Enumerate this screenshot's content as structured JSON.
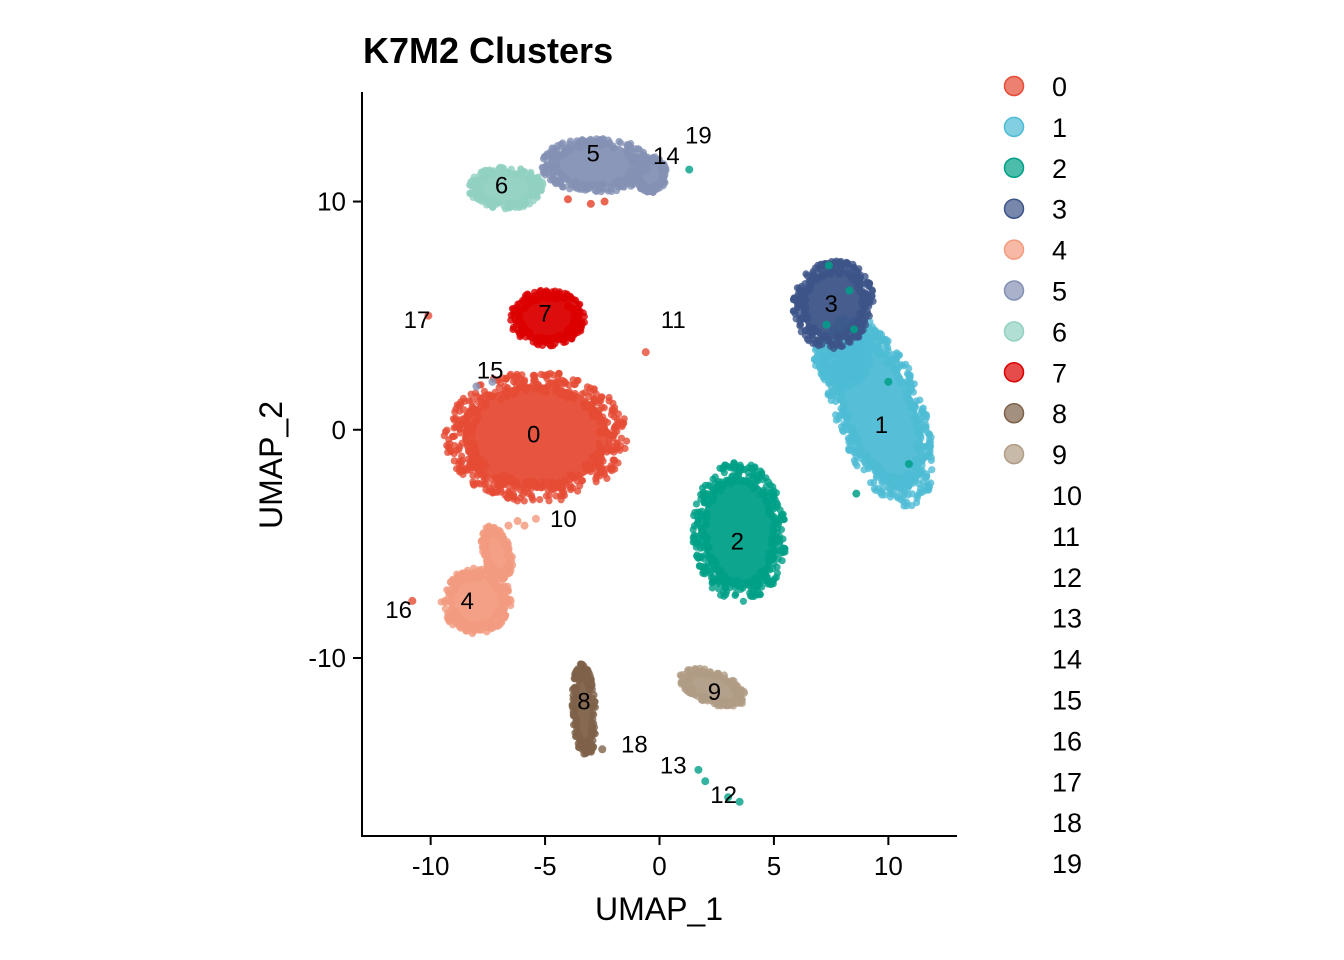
{
  "chart_data": {
    "type": "scatter",
    "title": "K7M2 Clusters",
    "xlabel": "UMAP_1",
    "ylabel": "UMAP_2",
    "xlim": [
      -13,
      13
    ],
    "ylim": [
      -17.8,
      14.8
    ],
    "x_ticks": [
      {
        "value": -10,
        "label": "-10"
      },
      {
        "value": -5,
        "label": "-5"
      },
      {
        "value": 0,
        "label": "0"
      },
      {
        "value": 5,
        "label": "5"
      },
      {
        "value": 10,
        "label": "10"
      }
    ],
    "y_ticks": [
      {
        "value": -10,
        "label": "-10"
      },
      {
        "value": 0,
        "label": "0"
      },
      {
        "value": 10,
        "label": "10"
      }
    ],
    "grid": false,
    "legend_position": "right",
    "clusters": [
      {
        "label": "0",
        "color": "#E64B35",
        "legend_marker": true,
        "label_pos": [
          -5.5,
          -0.2
        ],
        "blobs": [
          [
            -5.4,
            -0.3,
            3.9,
            2.8,
            0
          ]
        ]
      },
      {
        "label": "1",
        "color": "#4DBBD5",
        "legend_marker": true,
        "label_pos": [
          9.7,
          0.2
        ],
        "blobs": [
          [
            9.6,
            0.8,
            1.9,
            4.3,
            0.35
          ],
          [
            8.0,
            3.2,
            1.2,
            1.3,
            0
          ]
        ]
      },
      {
        "label": "2",
        "color": "#00A087",
        "legend_marker": true,
        "label_pos": [
          3.4,
          -4.9
        ],
        "blobs": [
          [
            3.5,
            -4.5,
            2.0,
            3.0,
            0.05
          ]
        ]
      },
      {
        "label": "3",
        "color": "#3C5488",
        "legend_marker": true,
        "label_pos": [
          7.5,
          5.5
        ],
        "blobs": [
          [
            7.6,
            5.5,
            1.7,
            1.9,
            -0.3
          ]
        ]
      },
      {
        "label": "4",
        "color": "#F39B7F",
        "legend_marker": true,
        "label_pos": [
          -8.4,
          -7.5
        ],
        "blobs": [
          [
            -8.0,
            -7.5,
            1.5,
            1.4,
            0
          ],
          [
            -7.1,
            -5.4,
            0.6,
            1.2,
            0.3
          ]
        ]
      },
      {
        "label": "5",
        "color": "#8491B4",
        "legend_marker": true,
        "label_pos": [
          -2.9,
          12.1
        ],
        "blobs": [
          [
            -2.8,
            11.6,
            2.3,
            1.2,
            0
          ],
          [
            -0.4,
            11.2,
            0.7,
            0.8,
            0.2
          ]
        ]
      },
      {
        "label": "6",
        "color": "#91D1C2",
        "legend_marker": true,
        "label_pos": [
          -6.9,
          10.7
        ],
        "blobs": [
          [
            -6.7,
            10.6,
            1.6,
            0.9,
            0
          ]
        ]
      },
      {
        "label": "7",
        "color": "#DC0000",
        "legend_marker": true,
        "label_pos": [
          -5.0,
          5.1
        ],
        "blobs": [
          [
            -4.9,
            4.9,
            1.6,
            1.2,
            0
          ]
        ]
      },
      {
        "label": "8",
        "color": "#7E6148",
        "legend_marker": true,
        "label_pos": [
          -3.3,
          -11.9
        ],
        "blobs": [
          [
            -3.3,
            -12.3,
            0.5,
            2.0,
            0.05
          ]
        ]
      },
      {
        "label": "9",
        "color": "#B09C85",
        "legend_marker": true,
        "label_pos": [
          2.4,
          -11.5
        ],
        "blobs": [
          [
            2.3,
            -11.3,
            1.5,
            0.7,
            -0.35
          ]
        ]
      },
      {
        "label": "10",
        "color": "#F39B7F",
        "legend_marker": false,
        "label_pos": [
          -4.2,
          -3.9
        ],
        "points": [
          [
            -5.4,
            -3.9
          ]
        ]
      },
      {
        "label": "11",
        "color": "#E64B35",
        "legend_marker": false,
        "label_pos": [
          0.6,
          4.8
        ],
        "points": [
          [
            -0.6,
            3.4
          ]
        ]
      },
      {
        "label": "12",
        "color": "#00A087",
        "legend_marker": false,
        "label_pos": [
          2.8,
          -16.0
        ],
        "points": [
          [
            3.5,
            -16.3
          ],
          [
            3.0,
            -16.1
          ]
        ]
      },
      {
        "label": "13",
        "color": "#00A087",
        "legend_marker": false,
        "label_pos": [
          0.6,
          -14.7
        ],
        "points": [
          [
            1.7,
            -14.9
          ],
          [
            2.0,
            -15.4
          ]
        ]
      },
      {
        "label": "14",
        "color": "#8491B4",
        "legend_marker": false,
        "label_pos": [
          0.3,
          12.0
        ],
        "points": [
          [
            -0.1,
            11.8
          ],
          [
            0.2,
            11.5
          ]
        ]
      },
      {
        "label": "15",
        "color": "#8491B4",
        "legend_marker": false,
        "label_pos": [
          -7.4,
          2.6
        ],
        "points": [
          [
            -8.0,
            1.9
          ],
          [
            -7.3,
            2.1
          ]
        ]
      },
      {
        "label": "16",
        "color": "#E64B35",
        "legend_marker": false,
        "label_pos": [
          -11.4,
          -7.9
        ],
        "points": [
          [
            -10.8,
            -7.5
          ]
        ]
      },
      {
        "label": "17",
        "color": "#E64B35",
        "legend_marker": false,
        "label_pos": [
          -10.6,
          4.8
        ],
        "points": [
          [
            -10.1,
            5.0
          ]
        ]
      },
      {
        "label": "18",
        "color": "#7E6148",
        "legend_marker": false,
        "label_pos": [
          -1.1,
          -13.8
        ],
        "points": [
          [
            -2.9,
            -13.9
          ],
          [
            -2.5,
            -14.0
          ]
        ]
      },
      {
        "label": "19",
        "color": "#00A087",
        "legend_marker": false,
        "label_pos": [
          1.7,
          12.9
        ],
        "points": [
          [
            1.3,
            11.4
          ]
        ]
      }
    ],
    "stray_points": [
      {
        "color": "#00A087",
        "points": [
          [
            7.4,
            7.2
          ],
          [
            8.3,
            6.1
          ],
          [
            8.5,
            4.4
          ],
          [
            10.0,
            2.1
          ],
          [
            10.9,
            -1.5
          ],
          [
            8.6,
            -2.8
          ],
          [
            7.3,
            4.6
          ],
          [
            4.6,
            -2.9
          ]
        ]
      },
      {
        "color": "#E64B35",
        "points": [
          [
            -3.0,
            9.9
          ],
          [
            -2.4,
            10.0
          ],
          [
            -4.0,
            10.1
          ]
        ]
      },
      {
        "color": "#F39B7F",
        "points": [
          [
            -6.2,
            -4.0
          ],
          [
            -5.9,
            -4.2
          ],
          [
            -6.6,
            -4.2
          ]
        ]
      }
    ]
  }
}
